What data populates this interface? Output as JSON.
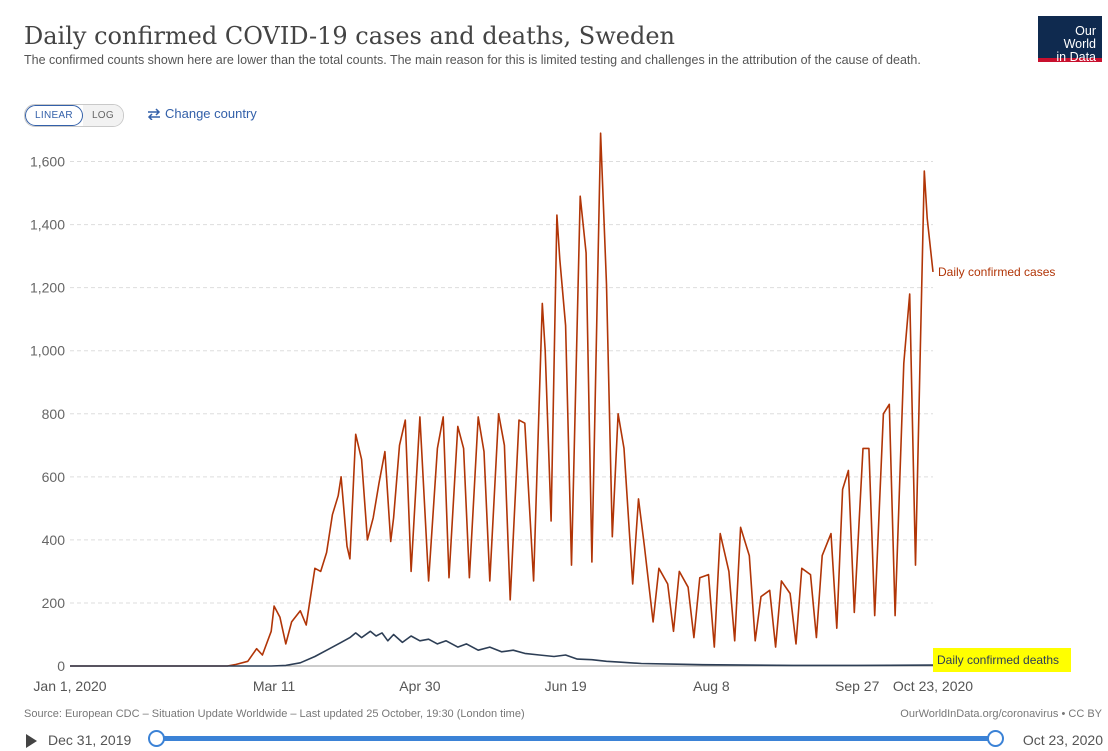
{
  "header": {
    "title": "Daily confirmed COVID-19 cases and deaths, Sweden",
    "subtitle": "The confirmed counts shown here are lower than the total counts. The main reason for this is limited testing and challenges in the attribution of the cause of death.",
    "logo_line1": "Our World",
    "logo_line2": "in Data"
  },
  "controls": {
    "linear_label": "LINEAR",
    "log_label": "LOG",
    "change_country_label": "Change country"
  },
  "footer": {
    "source": "Source: European CDC – Situation Update Worldwide – Last updated 25 October, 19:30 (London time)",
    "right": "OurWorldInData.org/coronavirus • CC BY"
  },
  "timeline": {
    "start_label": "Dec 31, 2019",
    "end_label": "Oct 23, 2020"
  },
  "colors": {
    "cases": "#b13507",
    "deaths": "#2d3e55",
    "grid": "#dddddd",
    "highlight": "#ffff00",
    "link": "#3360a9"
  },
  "chart_data": {
    "type": "line",
    "x_start_date": "2020-01-01",
    "x_end_date": "2020-10-23",
    "x_ticks": [
      {
        "label": "Jan 1, 2020",
        "date": "2020-01-01"
      },
      {
        "label": "Mar 11",
        "date": "2020-03-11"
      },
      {
        "label": "Apr 30",
        "date": "2020-04-30"
      },
      {
        "label": "Jun 19",
        "date": "2020-06-19"
      },
      {
        "label": "Aug 8",
        "date": "2020-08-08"
      },
      {
        "label": "Sep 27",
        "date": "2020-09-27"
      },
      {
        "label": "Oct 23, 2020",
        "date": "2020-10-23"
      }
    ],
    "ylim": [
      0,
      1700
    ],
    "y_ticks": [
      0,
      200,
      400,
      600,
      800,
      1000,
      1200,
      1400,
      1600
    ],
    "y_tick_labels": [
      "0",
      "200",
      "400",
      "600",
      "800",
      "1,000",
      "1,200",
      "1,400",
      "1,600"
    ],
    "grid": true,
    "series": [
      {
        "name": "Daily confirmed cases",
        "points": [
          [
            "2020-01-01",
            0
          ],
          [
            "2020-02-24",
            0
          ],
          [
            "2020-02-27",
            5
          ],
          [
            "2020-03-02",
            15
          ],
          [
            "2020-03-05",
            55
          ],
          [
            "2020-03-07",
            35
          ],
          [
            "2020-03-10",
            110
          ],
          [
            "2020-03-11",
            190
          ],
          [
            "2020-03-13",
            155
          ],
          [
            "2020-03-15",
            70
          ],
          [
            "2020-03-17",
            140
          ],
          [
            "2020-03-20",
            175
          ],
          [
            "2020-03-22",
            130
          ],
          [
            "2020-03-25",
            310
          ],
          [
            "2020-03-27",
            300
          ],
          [
            "2020-03-29",
            360
          ],
          [
            "2020-03-31",
            480
          ],
          [
            "2020-04-02",
            540
          ],
          [
            "2020-04-03",
            600
          ],
          [
            "2020-04-05",
            380
          ],
          [
            "2020-04-06",
            340
          ],
          [
            "2020-04-08",
            735
          ],
          [
            "2020-04-10",
            655
          ],
          [
            "2020-04-12",
            400
          ],
          [
            "2020-04-14",
            470
          ],
          [
            "2020-04-16",
            580
          ],
          [
            "2020-04-18",
            680
          ],
          [
            "2020-04-20",
            395
          ],
          [
            "2020-04-21",
            470
          ],
          [
            "2020-04-23",
            700
          ],
          [
            "2020-04-25",
            780
          ],
          [
            "2020-04-27",
            300
          ],
          [
            "2020-04-30",
            790
          ],
          [
            "2020-05-03",
            270
          ],
          [
            "2020-05-06",
            690
          ],
          [
            "2020-05-08",
            790
          ],
          [
            "2020-05-10",
            280
          ],
          [
            "2020-05-13",
            760
          ],
          [
            "2020-05-15",
            690
          ],
          [
            "2020-05-17",
            280
          ],
          [
            "2020-05-20",
            790
          ],
          [
            "2020-05-22",
            680
          ],
          [
            "2020-05-24",
            270
          ],
          [
            "2020-05-27",
            800
          ],
          [
            "2020-05-29",
            700
          ],
          [
            "2020-05-31",
            210
          ],
          [
            "2020-06-03",
            780
          ],
          [
            "2020-06-05",
            770
          ],
          [
            "2020-06-08",
            270
          ],
          [
            "2020-06-11",
            1150
          ],
          [
            "2020-06-12",
            1000
          ],
          [
            "2020-06-14",
            460
          ],
          [
            "2020-06-16",
            1430
          ],
          [
            "2020-06-17",
            1290
          ],
          [
            "2020-06-19",
            1080
          ],
          [
            "2020-06-21",
            320
          ],
          [
            "2020-06-24",
            1490
          ],
          [
            "2020-06-26",
            1310
          ],
          [
            "2020-06-28",
            330
          ],
          [
            "2020-07-01",
            1690
          ],
          [
            "2020-07-03",
            1210
          ],
          [
            "2020-07-05",
            410
          ],
          [
            "2020-07-07",
            800
          ],
          [
            "2020-07-09",
            690
          ],
          [
            "2020-07-12",
            260
          ],
          [
            "2020-07-14",
            530
          ],
          [
            "2020-07-16",
            380
          ],
          [
            "2020-07-19",
            140
          ],
          [
            "2020-07-21",
            310
          ],
          [
            "2020-07-24",
            260
          ],
          [
            "2020-07-26",
            110
          ],
          [
            "2020-07-28",
            300
          ],
          [
            "2020-07-31",
            250
          ],
          [
            "2020-08-02",
            90
          ],
          [
            "2020-08-04",
            280
          ],
          [
            "2020-08-07",
            290
          ],
          [
            "2020-08-09",
            60
          ],
          [
            "2020-08-11",
            420
          ],
          [
            "2020-08-14",
            300
          ],
          [
            "2020-08-16",
            80
          ],
          [
            "2020-08-18",
            440
          ],
          [
            "2020-08-21",
            350
          ],
          [
            "2020-08-23",
            80
          ],
          [
            "2020-08-25",
            220
          ],
          [
            "2020-08-28",
            240
          ],
          [
            "2020-08-30",
            60
          ],
          [
            "2020-09-01",
            270
          ],
          [
            "2020-09-04",
            230
          ],
          [
            "2020-09-06",
            70
          ],
          [
            "2020-09-08",
            310
          ],
          [
            "2020-09-11",
            290
          ],
          [
            "2020-09-13",
            90
          ],
          [
            "2020-09-15",
            350
          ],
          [
            "2020-09-18",
            420
          ],
          [
            "2020-09-20",
            120
          ],
          [
            "2020-09-22",
            560
          ],
          [
            "2020-09-24",
            620
          ],
          [
            "2020-09-26",
            170
          ],
          [
            "2020-09-29",
            690
          ],
          [
            "2020-10-01",
            690
          ],
          [
            "2020-10-03",
            160
          ],
          [
            "2020-10-06",
            800
          ],
          [
            "2020-10-08",
            830
          ],
          [
            "2020-10-10",
            160
          ],
          [
            "2020-10-13",
            960
          ],
          [
            "2020-10-15",
            1180
          ],
          [
            "2020-10-17",
            320
          ],
          [
            "2020-10-20",
            1570
          ],
          [
            "2020-10-21",
            1420
          ],
          [
            "2020-10-23",
            1250
          ]
        ]
      },
      {
        "name": "Daily confirmed deaths",
        "points": [
          [
            "2020-01-01",
            0
          ],
          [
            "2020-03-10",
            0
          ],
          [
            "2020-03-15",
            2
          ],
          [
            "2020-03-20",
            10
          ],
          [
            "2020-03-25",
            30
          ],
          [
            "2020-03-30",
            55
          ],
          [
            "2020-04-03",
            75
          ],
          [
            "2020-04-06",
            90
          ],
          [
            "2020-04-08",
            105
          ],
          [
            "2020-04-10",
            90
          ],
          [
            "2020-04-13",
            110
          ],
          [
            "2020-04-15",
            95
          ],
          [
            "2020-04-17",
            105
          ],
          [
            "2020-04-19",
            80
          ],
          [
            "2020-04-21",
            100
          ],
          [
            "2020-04-24",
            75
          ],
          [
            "2020-04-27",
            95
          ],
          [
            "2020-04-30",
            80
          ],
          [
            "2020-05-03",
            85
          ],
          [
            "2020-05-06",
            70
          ],
          [
            "2020-05-09",
            80
          ],
          [
            "2020-05-13",
            60
          ],
          [
            "2020-05-16",
            70
          ],
          [
            "2020-05-20",
            50
          ],
          [
            "2020-05-24",
            60
          ],
          [
            "2020-05-28",
            45
          ],
          [
            "2020-06-01",
            50
          ],
          [
            "2020-06-05",
            40
          ],
          [
            "2020-06-10",
            35
          ],
          [
            "2020-06-15",
            30
          ],
          [
            "2020-06-19",
            35
          ],
          [
            "2020-06-23",
            22
          ],
          [
            "2020-06-28",
            20
          ],
          [
            "2020-07-03",
            15
          ],
          [
            "2020-07-08",
            12
          ],
          [
            "2020-07-15",
            8
          ],
          [
            "2020-07-25",
            6
          ],
          [
            "2020-08-05",
            4
          ],
          [
            "2020-08-20",
            3
          ],
          [
            "2020-09-05",
            2
          ],
          [
            "2020-09-27",
            2
          ],
          [
            "2020-10-23",
            3
          ]
        ]
      }
    ]
  }
}
